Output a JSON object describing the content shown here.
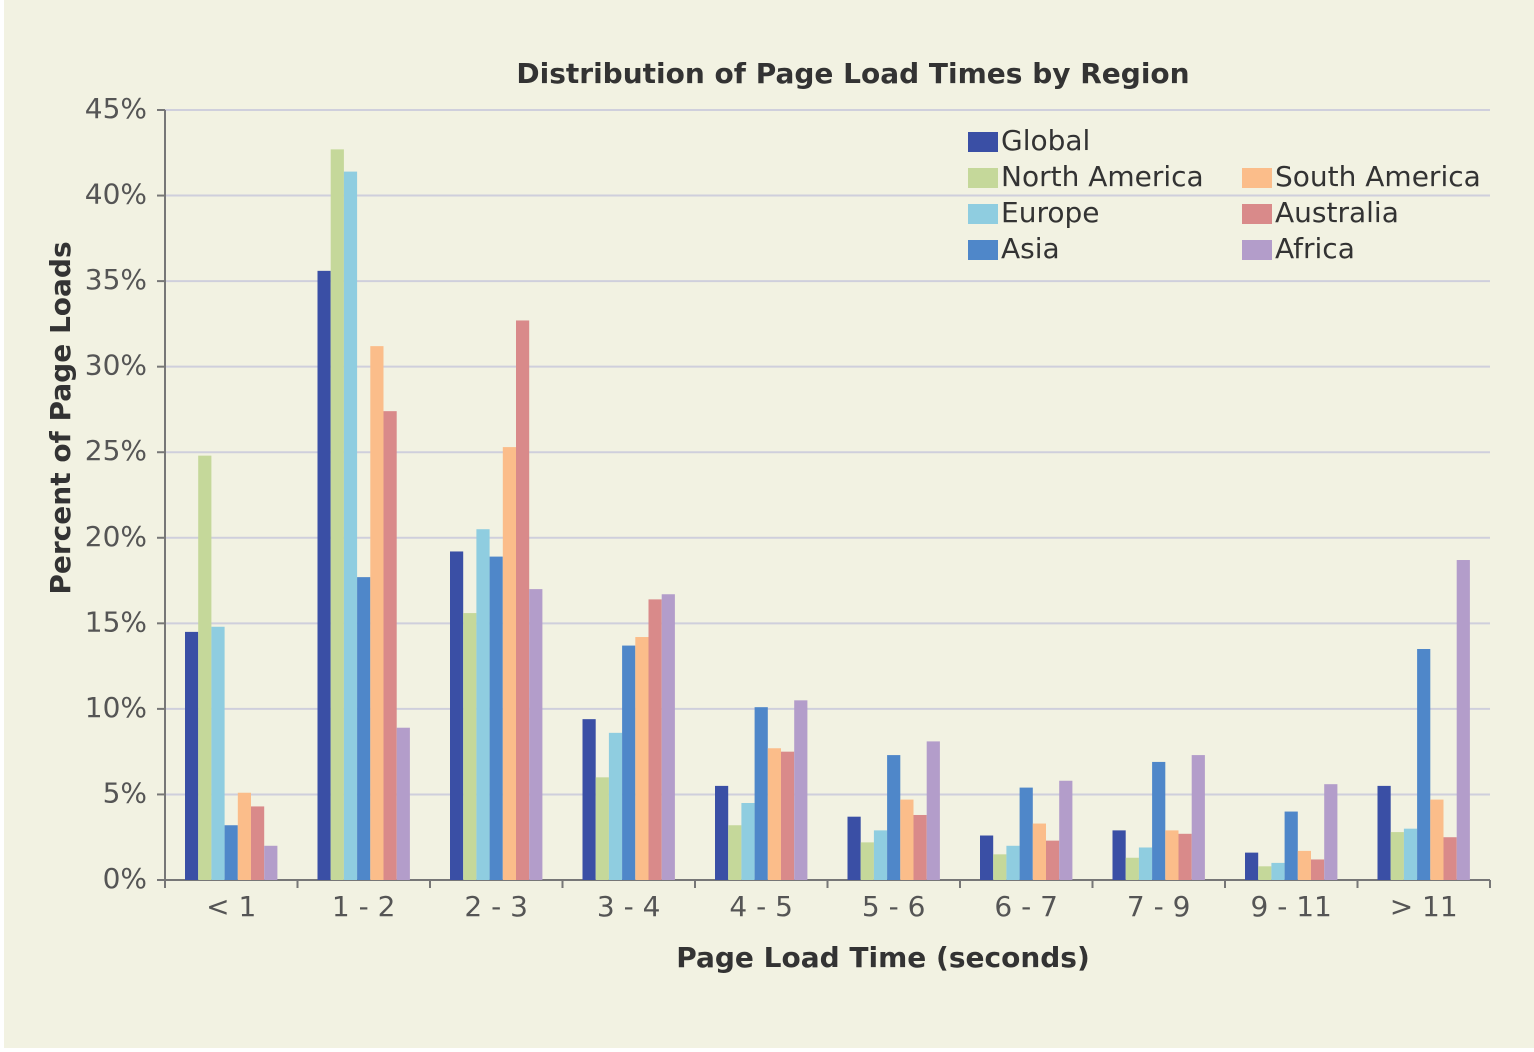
{
  "chart_data": {
    "type": "bar",
    "title": "Distribution of Page Load Times by Region",
    "xlabel": "Page Load Time (seconds)",
    "ylabel": "Percent of Page Loads",
    "categories": [
      "< 1",
      "1 - 2",
      "2 - 3",
      "3 - 4",
      "4 - 5",
      "5 - 6",
      "6 - 7",
      "7 - 9",
      "9 - 11",
      "> 11"
    ],
    "series": [
      {
        "name": "Global",
        "color": "#3a4fa5",
        "values": [
          14.5,
          35.6,
          19.2,
          9.4,
          5.5,
          3.7,
          2.6,
          2.9,
          1.6,
          5.5
        ]
      },
      {
        "name": "North America",
        "color": "#c5d89a",
        "values": [
          24.8,
          42.7,
          15.6,
          6.0,
          3.2,
          2.2,
          1.5,
          1.3,
          0.8,
          2.8
        ]
      },
      {
        "name": "Europe",
        "color": "#8fcde0",
        "values": [
          14.8,
          41.4,
          20.5,
          8.6,
          4.5,
          2.9,
          2.0,
          1.9,
          1.0,
          3.0
        ]
      },
      {
        "name": "Asia",
        "color": "#4f87c9",
        "values": [
          3.2,
          17.7,
          18.9,
          13.7,
          10.1,
          7.3,
          5.4,
          6.9,
          4.0,
          13.5
        ]
      },
      {
        "name": "South America",
        "color": "#fbbd8a",
        "values": [
          5.1,
          31.2,
          25.3,
          14.2,
          7.7,
          4.7,
          3.3,
          2.9,
          1.7,
          4.7
        ]
      },
      {
        "name": "Australia",
        "color": "#d98a8a",
        "values": [
          4.3,
          27.4,
          32.7,
          16.4,
          7.5,
          3.8,
          2.3,
          2.7,
          1.2,
          2.5
        ]
      },
      {
        "name": "Africa",
        "color": "#b39dca",
        "values": [
          2.0,
          8.9,
          17.0,
          16.7,
          10.5,
          8.1,
          5.8,
          7.3,
          5.6,
          18.7
        ]
      }
    ],
    "ylim": [
      0,
      45
    ],
    "yticks": [
      {
        "value": 0,
        "label": "0%"
      },
      {
        "value": 5,
        "label": "5%"
      },
      {
        "value": 10,
        "label": "10%"
      },
      {
        "value": 15,
        "label": "15%"
      },
      {
        "value": 20,
        "label": "20%"
      },
      {
        "value": 25,
        "label": "25%"
      },
      {
        "value": 30,
        "label": "30%"
      },
      {
        "value": 35,
        "label": "35%"
      },
      {
        "value": 40,
        "label": "40%"
      },
      {
        "value": 45,
        "label": "45%"
      }
    ],
    "grid": true,
    "legend": "upper right"
  }
}
